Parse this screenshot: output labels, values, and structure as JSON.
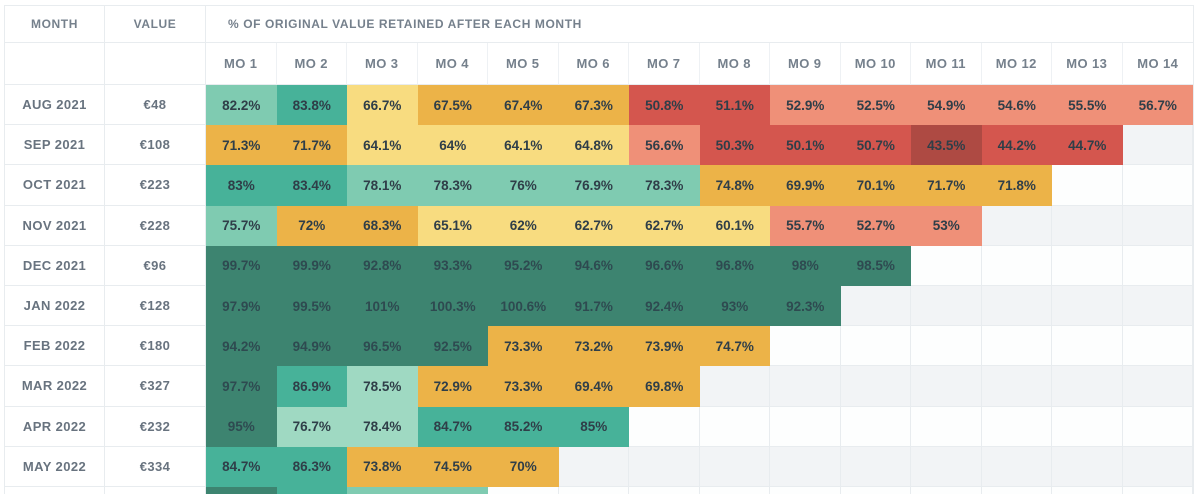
{
  "table": {
    "headers": {
      "month": "MONTH",
      "value": "VALUE",
      "retained": "% OF ORIGINAL VALUE RETAINED AFTER EACH MONTH"
    }
  },
  "palette": {
    "dark-green": "#3d8470",
    "teal": "#47b299",
    "light-teal": "#7fcbb1",
    "mint": "#9fd9c2",
    "pale-yellow": "#f8dc80",
    "orange": "#ecb348",
    "salmon": "#ef9078",
    "red": "#d4564e",
    "dark-red": "#ae4a43"
  },
  "chart_data": {
    "type": "heatmap",
    "title": "% OF ORIGINAL VALUE RETAINED AFTER EACH MONTH",
    "columns": [
      "MO 1",
      "MO 2",
      "MO 3",
      "MO 4",
      "MO 5",
      "MO 6",
      "MO 7",
      "MO 8",
      "MO 9",
      "MO 10",
      "MO 11",
      "MO 12",
      "MO 13",
      "MO 14"
    ],
    "rows": [
      {
        "month": "AUG 2021",
        "value": "€48",
        "retention_pct": [
          82.2,
          83.8,
          66.7,
          67.5,
          67.4,
          67.3,
          50.8,
          51.1,
          52.9,
          52.5,
          54.9,
          54.6,
          55.5,
          56.7
        ],
        "colors": [
          "light-teal",
          "teal",
          "pale-yellow",
          "orange",
          "orange",
          "orange",
          "red",
          "red",
          "salmon",
          "salmon",
          "salmon",
          "salmon",
          "salmon",
          "salmon"
        ]
      },
      {
        "month": "SEP 2021",
        "value": "€108",
        "retention_pct": [
          71.3,
          71.7,
          64.1,
          64,
          64.1,
          64.8,
          56.6,
          50.3,
          50.1,
          50.7,
          43.5,
          44.2,
          44.7
        ],
        "colors": [
          "orange",
          "orange",
          "pale-yellow",
          "pale-yellow",
          "pale-yellow",
          "pale-yellow",
          "salmon",
          "red",
          "red",
          "red",
          "dark-red",
          "red",
          "red"
        ]
      },
      {
        "month": "OCT 2021",
        "value": "€223",
        "retention_pct": [
          83,
          83.4,
          78.1,
          78.3,
          76,
          76.9,
          78.3,
          74.8,
          69.9,
          70.1,
          71.7,
          71.8
        ],
        "colors": [
          "teal",
          "teal",
          "light-teal",
          "light-teal",
          "light-teal",
          "light-teal",
          "light-teal",
          "orange",
          "orange",
          "orange",
          "orange",
          "orange"
        ]
      },
      {
        "month": "NOV 2021",
        "value": "€228",
        "retention_pct": [
          75.7,
          72,
          68.3,
          65.1,
          62,
          62.7,
          62.7,
          60.1,
          55.7,
          52.7,
          53
        ],
        "colors": [
          "light-teal",
          "orange",
          "orange",
          "pale-yellow",
          "pale-yellow",
          "pale-yellow",
          "pale-yellow",
          "pale-yellow",
          "salmon",
          "salmon",
          "salmon"
        ]
      },
      {
        "month": "DEC 2021",
        "value": "€96",
        "retention_pct": [
          99.7,
          99.9,
          92.8,
          93.3,
          95.2,
          94.6,
          96.6,
          96.8,
          98,
          98.5
        ],
        "colors": [
          "dark-green",
          "dark-green",
          "dark-green",
          "dark-green",
          "dark-green",
          "dark-green",
          "dark-green",
          "dark-green",
          "dark-green",
          "dark-green"
        ]
      },
      {
        "month": "JAN 2022",
        "value": "€128",
        "retention_pct": [
          97.9,
          99.5,
          101,
          100.3,
          100.6,
          91.7,
          92.4,
          93,
          92.3
        ],
        "colors": [
          "dark-green",
          "dark-green",
          "dark-green",
          "dark-green",
          "dark-green",
          "dark-green",
          "dark-green",
          "dark-green",
          "dark-green"
        ]
      },
      {
        "month": "FEB 2022",
        "value": "€180",
        "retention_pct": [
          94.2,
          94.9,
          96.5,
          92.5,
          73.3,
          73.2,
          73.9,
          74.7
        ],
        "colors": [
          "dark-green",
          "dark-green",
          "dark-green",
          "dark-green",
          "orange",
          "orange",
          "orange",
          "orange"
        ]
      },
      {
        "month": "MAR 2022",
        "value": "€327",
        "retention_pct": [
          97.7,
          86.9,
          78.5,
          72.9,
          73.3,
          69.4,
          69.8
        ],
        "colors": [
          "dark-green",
          "teal",
          "mint",
          "orange",
          "orange",
          "orange",
          "orange"
        ]
      },
      {
        "month": "APR 2022",
        "value": "€232",
        "retention_pct": [
          95,
          76.7,
          78.4,
          84.7,
          85.2,
          85
        ],
        "colors": [
          "dark-green",
          "mint",
          "mint",
          "teal",
          "teal",
          "teal"
        ]
      },
      {
        "month": "MAY 2022",
        "value": "€334",
        "retention_pct": [
          84.7,
          86.3,
          73.8,
          74.5,
          70
        ],
        "colors": [
          "teal",
          "teal",
          "orange",
          "orange",
          "orange"
        ]
      }
    ]
  },
  "partial_row": {
    "colors": [
      "dark-green",
      "teal",
      "light-teal",
      "light-teal"
    ]
  }
}
